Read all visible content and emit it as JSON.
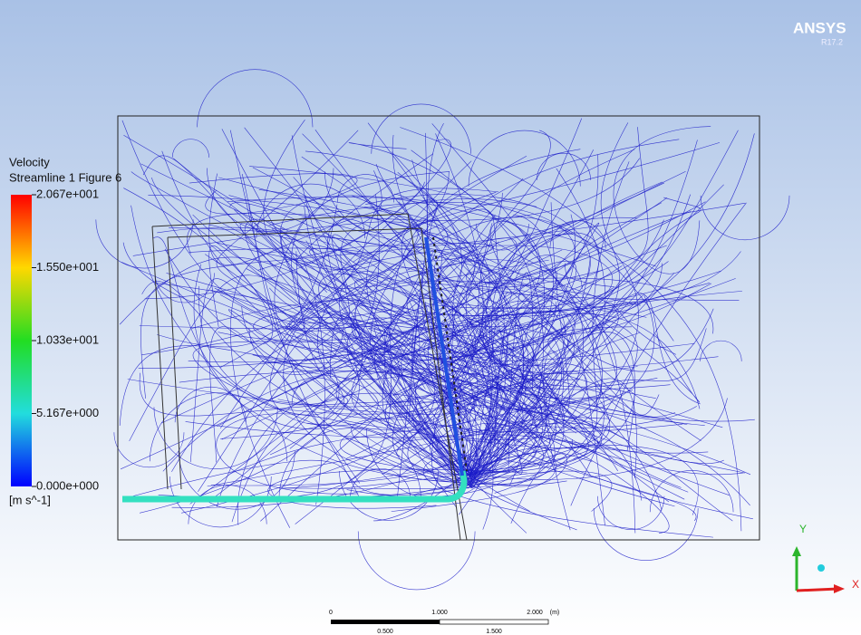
{
  "header": {
    "brand": "ANSYS",
    "version": "R17.2"
  },
  "legend": {
    "variable": "Velocity",
    "object": "Streamline 1 Figure 6",
    "labels": [
      "2.067e+001",
      "1.550e+001",
      "1.033e+001",
      "5.167e+000",
      "0.000e+000"
    ],
    "unit": "[m s^-1]"
  },
  "scale_bar": {
    "top_labels": [
      "0",
      "1.000",
      "2.000",
      "(m)"
    ],
    "bottom_labels": [
      "0.500",
      "1.500"
    ]
  },
  "triad": {
    "y": "Y",
    "x": "X"
  }
}
